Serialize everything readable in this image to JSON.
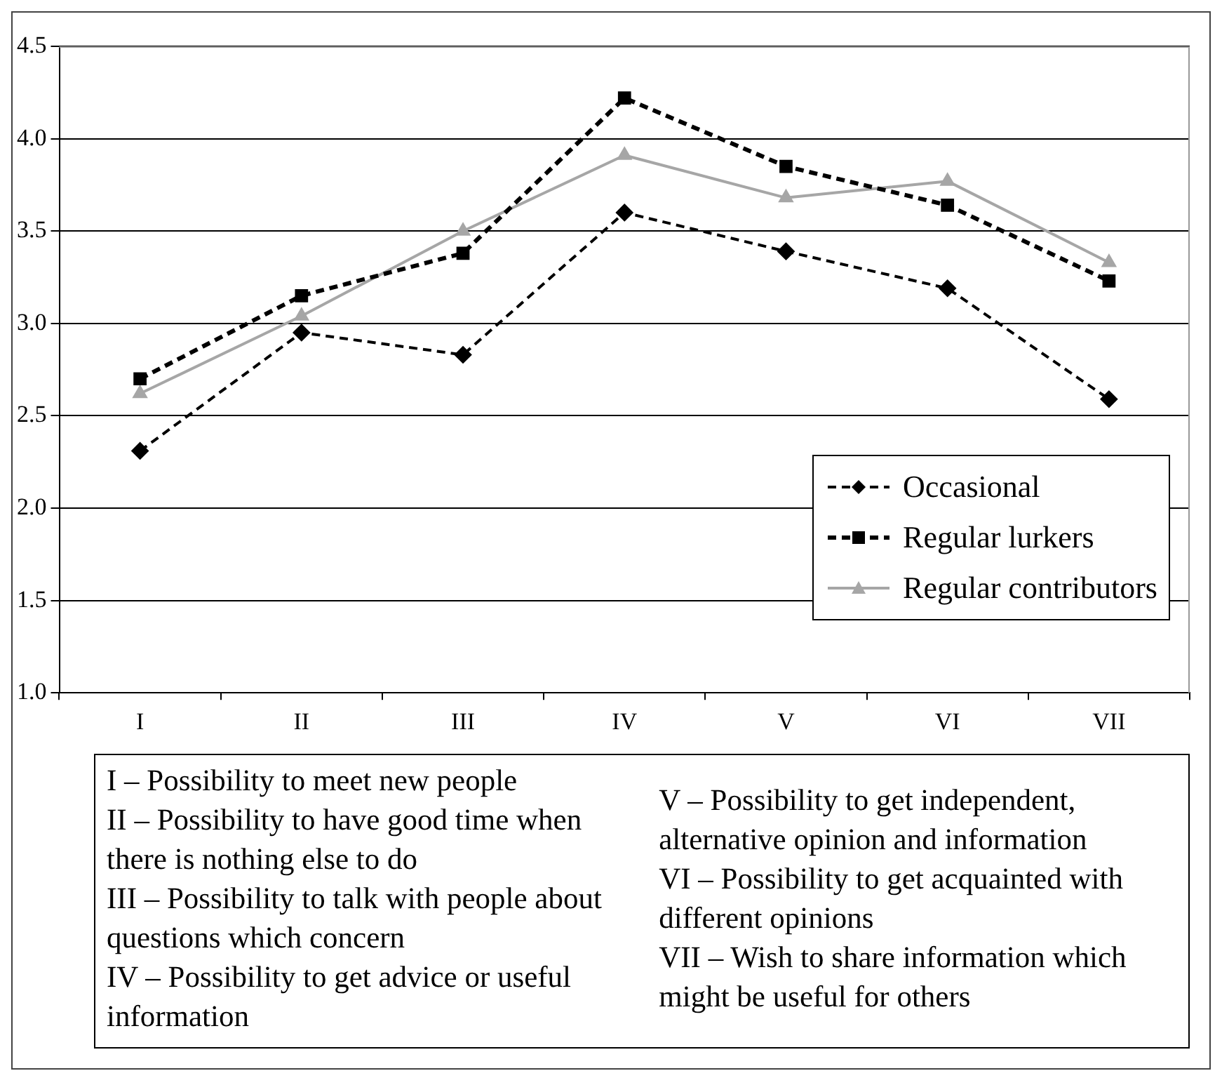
{
  "chart_data": {
    "type": "line",
    "categories": [
      "I",
      "II",
      "III",
      "IV",
      "V",
      "VI",
      "VII"
    ],
    "series": [
      {
        "name": "Occasional",
        "color": "#000000",
        "marker": "diamond",
        "line_style": "dashed",
        "values": [
          2.31,
          2.95,
          2.83,
          3.6,
          3.39,
          3.19,
          2.59
        ]
      },
      {
        "name": "Regular lurkers",
        "color": "#000000",
        "marker": "square",
        "line_style": "dashed",
        "values": [
          2.7,
          3.15,
          3.38,
          4.22,
          3.85,
          3.64,
          3.23
        ]
      },
      {
        "name": "Regular contributors",
        "color": "#a6a6a6",
        "marker": "triangle",
        "line_style": "solid",
        "values": [
          2.62,
          3.04,
          3.5,
          3.91,
          3.68,
          3.77,
          3.33
        ]
      }
    ],
    "ylim": [
      1.0,
      4.5
    ],
    "yticks": [
      {
        "value": 1,
        "label": "1.0"
      },
      {
        "value": 1.5,
        "label": "1.5"
      },
      {
        "value": 2,
        "label": "2.0"
      },
      {
        "value": 2.5,
        "label": "2.5"
      },
      {
        "value": 3,
        "label": "3.0"
      },
      {
        "value": 3.5,
        "label": "3.5"
      },
      {
        "value": 4,
        "label": "4.0"
      },
      {
        "value": 4.5,
        "label": "4.5"
      }
    ],
    "grid": "y",
    "legend": "right",
    "annotations": [
      "I – Possibility to meet new people",
      "II – Possibility to have good time when there is nothing else to do",
      "III – Possibility to talk with people about questions which concern",
      "IV – Possibility to get advice or useful information",
      "V – Possibility to get independent, alternative opinion and information",
      "VI – Possibility to get acquainted with different opinions",
      "VII – Wish to share information which might be useful for others"
    ]
  }
}
